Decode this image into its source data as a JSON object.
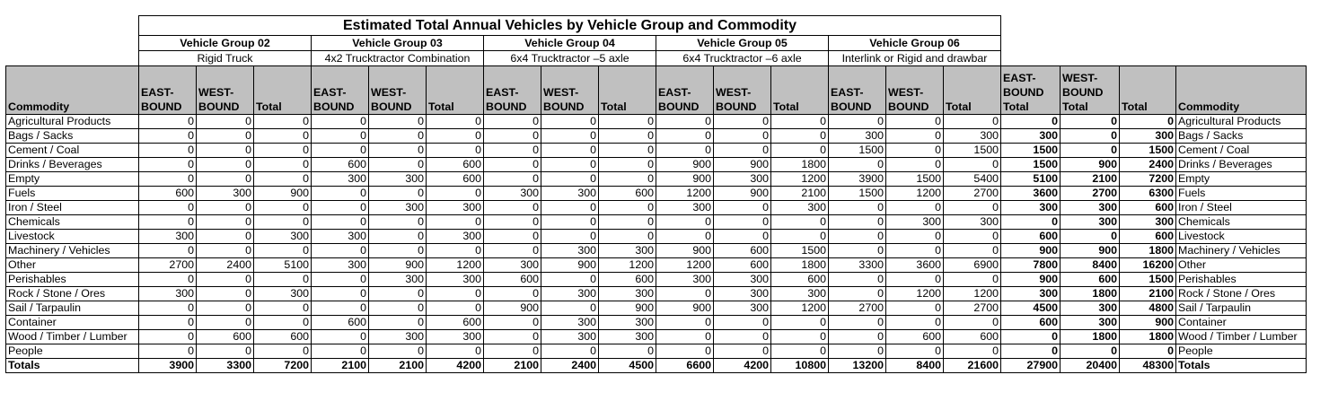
{
  "title": "Estimated Total Annual Vehicles by Vehicle Group and Commodity",
  "groups": [
    {
      "name": "Vehicle Group 02",
      "type": "Rigid Truck"
    },
    {
      "name": "Vehicle Group 03",
      "type": "4x2 Trucktractor Combination"
    },
    {
      "name": "Vehicle Group 04",
      "type": "6x4 Trucktractor –5 axle"
    },
    {
      "name": "Vehicle Group 05",
      "type": "6x4 Trucktractor –6 axle"
    },
    {
      "name": "Vehicle Group 06",
      "type": "Interlink or Rigid and drawbar"
    }
  ],
  "headers": {
    "commodity": "Commodity",
    "east": "EAST-BOUND",
    "west": "WEST-BOUND",
    "total": "Total",
    "east_total": "EAST-BOUND Total",
    "west_total": "WEST-BOUND Total"
  },
  "rows": [
    {
      "commodity": "Agricultural Products",
      "values": [
        0,
        0,
        0,
        0,
        0,
        0,
        0,
        0,
        0,
        0,
        0,
        0,
        0,
        0,
        0,
        0,
        0,
        0
      ]
    },
    {
      "commodity": "Bags / Sacks",
      "values": [
        0,
        0,
        0,
        0,
        0,
        0,
        0,
        0,
        0,
        0,
        0,
        0,
        300,
        0,
        300,
        300,
        0,
        300
      ]
    },
    {
      "commodity": "Cement / Coal",
      "values": [
        0,
        0,
        0,
        0,
        0,
        0,
        0,
        0,
        0,
        0,
        0,
        0,
        1500,
        0,
        1500,
        1500,
        0,
        1500
      ]
    },
    {
      "commodity": "Drinks / Beverages",
      "values": [
        0,
        0,
        0,
        600,
        0,
        600,
        0,
        0,
        0,
        900,
        900,
        1800,
        0,
        0,
        0,
        1500,
        900,
        2400
      ]
    },
    {
      "commodity": "Empty",
      "values": [
        0,
        0,
        0,
        300,
        300,
        600,
        0,
        0,
        0,
        900,
        300,
        1200,
        3900,
        1500,
        5400,
        5100,
        2100,
        7200
      ]
    },
    {
      "commodity": "Fuels",
      "values": [
        600,
        300,
        900,
        0,
        0,
        0,
        300,
        300,
        600,
        1200,
        900,
        2100,
        1500,
        1200,
        2700,
        3600,
        2700,
        6300
      ]
    },
    {
      "commodity": "Iron / Steel",
      "values": [
        0,
        0,
        0,
        0,
        300,
        300,
        0,
        0,
        0,
        300,
        0,
        300,
        0,
        0,
        0,
        300,
        300,
        600
      ]
    },
    {
      "commodity": "Chemicals",
      "values": [
        0,
        0,
        0,
        0,
        0,
        0,
        0,
        0,
        0,
        0,
        0,
        0,
        0,
        300,
        300,
        0,
        300,
        300
      ]
    },
    {
      "commodity": "Livestock",
      "values": [
        300,
        0,
        300,
        300,
        0,
        300,
        0,
        0,
        0,
        0,
        0,
        0,
        0,
        0,
        0,
        600,
        0,
        600
      ]
    },
    {
      "commodity": "Machinery / Vehicles",
      "values": [
        0,
        0,
        0,
        0,
        0,
        0,
        0,
        300,
        300,
        900,
        600,
        1500,
        0,
        0,
        0,
        900,
        900,
        1800
      ]
    },
    {
      "commodity": "Other",
      "values": [
        2700,
        2400,
        5100,
        300,
        900,
        1200,
        300,
        900,
        1200,
        1200,
        600,
        1800,
        3300,
        3600,
        6900,
        7800,
        8400,
        16200
      ]
    },
    {
      "commodity": "Perishables",
      "values": [
        0,
        0,
        0,
        0,
        300,
        300,
        600,
        0,
        600,
        300,
        300,
        600,
        0,
        0,
        0,
        900,
        600,
        1500
      ]
    },
    {
      "commodity": "Rock / Stone / Ores",
      "values": [
        300,
        0,
        300,
        0,
        0,
        0,
        0,
        300,
        300,
        0,
        300,
        300,
        0,
        1200,
        1200,
        300,
        1800,
        2100
      ]
    },
    {
      "commodity": "Sail / Tarpaulin",
      "values": [
        0,
        0,
        0,
        0,
        0,
        0,
        900,
        0,
        900,
        900,
        300,
        1200,
        2700,
        0,
        2700,
        4500,
        300,
        4800
      ]
    },
    {
      "commodity": "Container",
      "values": [
        0,
        0,
        0,
        600,
        0,
        600,
        0,
        300,
        300,
        0,
        0,
        0,
        0,
        0,
        0,
        600,
        300,
        900
      ]
    },
    {
      "commodity": "Wood / Timber / Lumber",
      "values": [
        0,
        600,
        600,
        0,
        300,
        300,
        0,
        300,
        300,
        0,
        0,
        0,
        0,
        600,
        600,
        0,
        1800,
        1800
      ]
    },
    {
      "commodity": "People",
      "values": [
        0,
        0,
        0,
        0,
        0,
        0,
        0,
        0,
        0,
        0,
        0,
        0,
        0,
        0,
        0,
        0,
        0,
        0
      ]
    }
  ],
  "totals": {
    "label": "Totals",
    "values": [
      3900,
      3300,
      7200,
      2100,
      2100,
      4200,
      2100,
      2400,
      4500,
      6600,
      4200,
      10800,
      13200,
      8400,
      21600,
      27900,
      20400,
      48300
    ]
  }
}
